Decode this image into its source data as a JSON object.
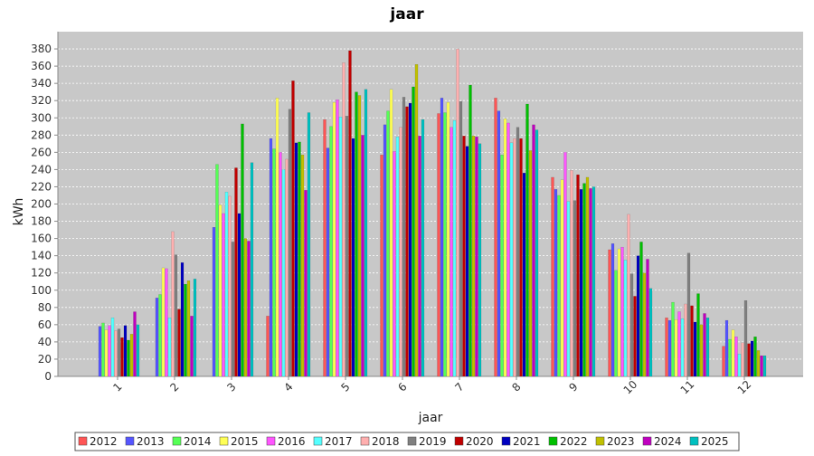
{
  "chart_data": {
    "type": "bar",
    "title": "jaar",
    "xlabel": "jaar",
    "ylabel": "kWh",
    "categories": [
      "1",
      "2",
      "3",
      "4",
      "5",
      "6",
      "7",
      "8",
      "9",
      "10",
      "11",
      "12"
    ],
    "yticks": [
      0,
      20,
      40,
      60,
      80,
      100,
      120,
      140,
      160,
      180,
      200,
      220,
      240,
      260,
      280,
      300,
      320,
      340,
      360,
      380
    ],
    "ylim": [
      0,
      400
    ],
    "grid": true,
    "legend_position": "bottom",
    "colors": {
      "plot_background": "#c8c8c8",
      "gridline": "#ffffff",
      "page_background": "#ffffff"
    },
    "series": [
      {
        "name": "2012",
        "color": "#ff5555",
        "values": [
          0,
          0,
          0,
          70,
          298,
          257,
          305,
          323,
          231,
          147,
          68,
          35
        ]
      },
      {
        "name": "2013",
        "color": "#5555ff",
        "values": [
          58,
          91,
          173,
          276,
          265,
          292,
          323,
          308,
          217,
          154,
          65,
          65
        ]
      },
      {
        "name": "2014",
        "color": "#55ff55",
        "values": [
          62,
          95,
          246,
          264,
          290,
          308,
          306,
          257,
          210,
          123,
          86,
          43
        ]
      },
      {
        "name": "2015",
        "color": "#ffff55",
        "values": [
          54,
          126,
          199,
          323,
          318,
          333,
          318,
          299,
          228,
          148,
          66,
          54
        ]
      },
      {
        "name": "2016",
        "color": "#ff55ff",
        "values": [
          59,
          125,
          189,
          260,
          321,
          261,
          289,
          294,
          260,
          150,
          75,
          46
        ]
      },
      {
        "name": "2017",
        "color": "#55ffff",
        "values": [
          68,
          68,
          214,
          240,
          301,
          278,
          297,
          271,
          203,
          135,
          67,
          26
        ]
      },
      {
        "name": "2018",
        "color": "#ffafaf",
        "values": [
          53,
          168,
          209,
          252,
          364,
          289,
          380,
          276,
          239,
          188,
          84,
          39
        ]
      },
      {
        "name": "2019",
        "color": "#808080",
        "values": [
          55,
          141,
          156,
          310,
          302,
          324,
          319,
          289,
          204,
          119,
          143,
          88
        ]
      },
      {
        "name": "2020",
        "color": "#c00000",
        "values": [
          45,
          78,
          242,
          343,
          378,
          313,
          279,
          276,
          234,
          93,
          82,
          38
        ]
      },
      {
        "name": "2021",
        "color": "#0000c0",
        "values": [
          59,
          132,
          189,
          271,
          276,
          317,
          267,
          236,
          217,
          140,
          63,
          41
        ]
      },
      {
        "name": "2022",
        "color": "#00c000",
        "values": [
          42,
          107,
          293,
          272,
          330,
          336,
          338,
          316,
          224,
          156,
          96,
          46
        ]
      },
      {
        "name": "2023",
        "color": "#c0c000",
        "values": [
          49,
          111,
          160,
          257,
          326,
          362,
          279,
          262,
          231,
          120,
          60,
          30
        ]
      },
      {
        "name": "2024",
        "color": "#c000c0",
        "values": [
          75,
          70,
          157,
          216,
          280,
          279,
          278,
          292,
          218,
          136,
          73,
          24
        ]
      },
      {
        "name": "2025",
        "color": "#00c0c0",
        "values": [
          60,
          113,
          248,
          306,
          333,
          298,
          270,
          286,
          220,
          102,
          68,
          24
        ]
      }
    ]
  }
}
